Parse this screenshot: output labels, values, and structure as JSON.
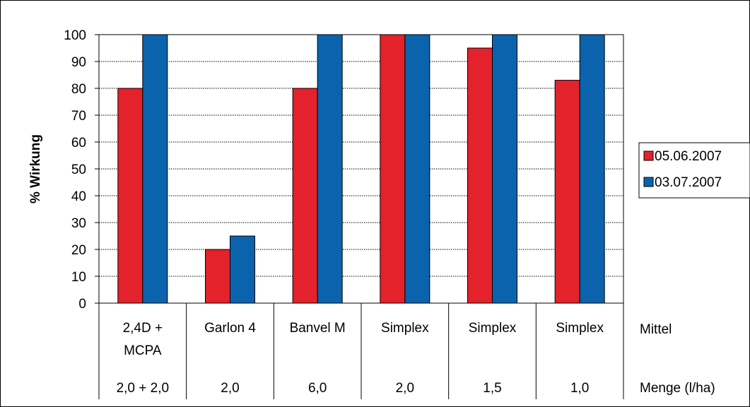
{
  "chart_data": {
    "type": "bar",
    "ylabel": "% Wirkung",
    "ylim": [
      0,
      100
    ],
    "yticks": [
      0,
      10,
      20,
      30,
      40,
      50,
      60,
      70,
      80,
      90,
      100
    ],
    "grid": true,
    "legend_position": "right",
    "categories": [
      {
        "name": [
          "2,4D +",
          "MCPA"
        ],
        "menge": "2,0 + 2,0"
      },
      {
        "name": [
          "Garlon 4"
        ],
        "menge": "2,0"
      },
      {
        "name": [
          "Banvel M"
        ],
        "menge": "6,0"
      },
      {
        "name": [
          "Simplex"
        ],
        "menge": "2,0"
      },
      {
        "name": [
          "Simplex"
        ],
        "menge": "1,5"
      },
      {
        "name": [
          "Simplex"
        ],
        "menge": "1,0"
      }
    ],
    "row_labels": {
      "mittel": "Mittel",
      "menge": "Menge (l/ha)"
    },
    "series": [
      {
        "name": "05.06.2007",
        "color": "#e3222b",
        "values": [
          80,
          20,
          80,
          100,
          95,
          83
        ]
      },
      {
        "name": "03.07.2007",
        "color": "#0b63ad",
        "values": [
          100,
          25,
          100,
          100,
          100,
          100
        ]
      }
    ]
  }
}
